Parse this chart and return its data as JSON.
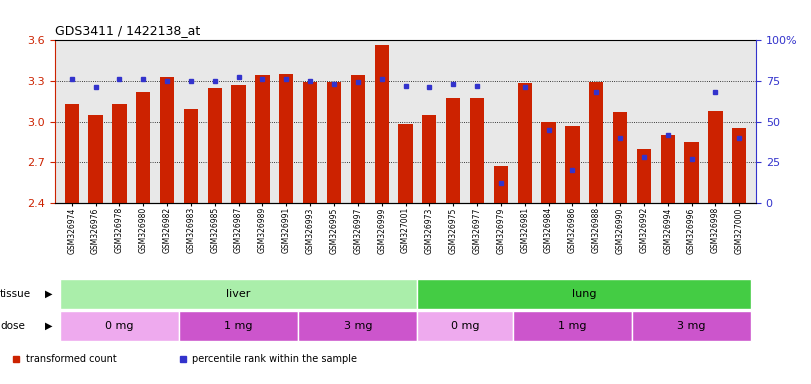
{
  "title": "GDS3411 / 1422138_at",
  "samples": [
    "GSM326974",
    "GSM326976",
    "GSM326978",
    "GSM326980",
    "GSM326982",
    "GSM326983",
    "GSM326985",
    "GSM326987",
    "GSM326989",
    "GSM326991",
    "GSM326993",
    "GSM326995",
    "GSM326997",
    "GSM326999",
    "GSM327001",
    "GSM326973",
    "GSM326975",
    "GSM326977",
    "GSM326979",
    "GSM326981",
    "GSM326984",
    "GSM326986",
    "GSM326988",
    "GSM326990",
    "GSM326992",
    "GSM326994",
    "GSM326996",
    "GSM326998",
    "GSM327000"
  ],
  "transformed_count": [
    3.13,
    3.05,
    3.13,
    3.22,
    3.33,
    3.09,
    3.25,
    3.27,
    3.34,
    3.35,
    3.29,
    3.29,
    3.34,
    3.56,
    2.98,
    3.05,
    3.17,
    3.17,
    2.67,
    3.28,
    3.0,
    2.97,
    3.29,
    3.07,
    2.8,
    2.9,
    2.85,
    3.08,
    2.95
  ],
  "percentile_pct": [
    76,
    71,
    76,
    76,
    75,
    75,
    75,
    77,
    76,
    76,
    75,
    73,
    74,
    76,
    72,
    71,
    73,
    72,
    12,
    71,
    45,
    20,
    68,
    40,
    28,
    42,
    27,
    68,
    40
  ],
  "bar_color": "#cc2200",
  "marker_color": "#3333cc",
  "ylim_left": [
    2.4,
    3.6
  ],
  "ylim_right": [
    0,
    100
  ],
  "yticks_left": [
    2.4,
    2.7,
    3.0,
    3.3,
    3.6
  ],
  "yticks_right": [
    0,
    25,
    50,
    75,
    100
  ],
  "tissue_groups": [
    {
      "label": "liver",
      "start": 0,
      "end": 14,
      "color": "#aaeeaa"
    },
    {
      "label": "lung",
      "start": 15,
      "end": 28,
      "color": "#44cc44"
    }
  ],
  "dose_groups": [
    {
      "label": "0 mg",
      "start": 0,
      "end": 4,
      "color": "#eeaaee"
    },
    {
      "label": "1 mg",
      "start": 5,
      "end": 9,
      "color": "#cc55cc"
    },
    {
      "label": "3 mg",
      "start": 10,
      "end": 14,
      "color": "#cc55cc"
    },
    {
      "label": "0 mg",
      "start": 15,
      "end": 18,
      "color": "#eeaaee"
    },
    {
      "label": "1 mg",
      "start": 19,
      "end": 23,
      "color": "#cc55cc"
    },
    {
      "label": "3 mg",
      "start": 24,
      "end": 28,
      "color": "#cc55cc"
    }
  ],
  "bar_width": 0.6,
  "xlim_min": -0.7,
  "plot_bg_color": "#e8e8e8"
}
